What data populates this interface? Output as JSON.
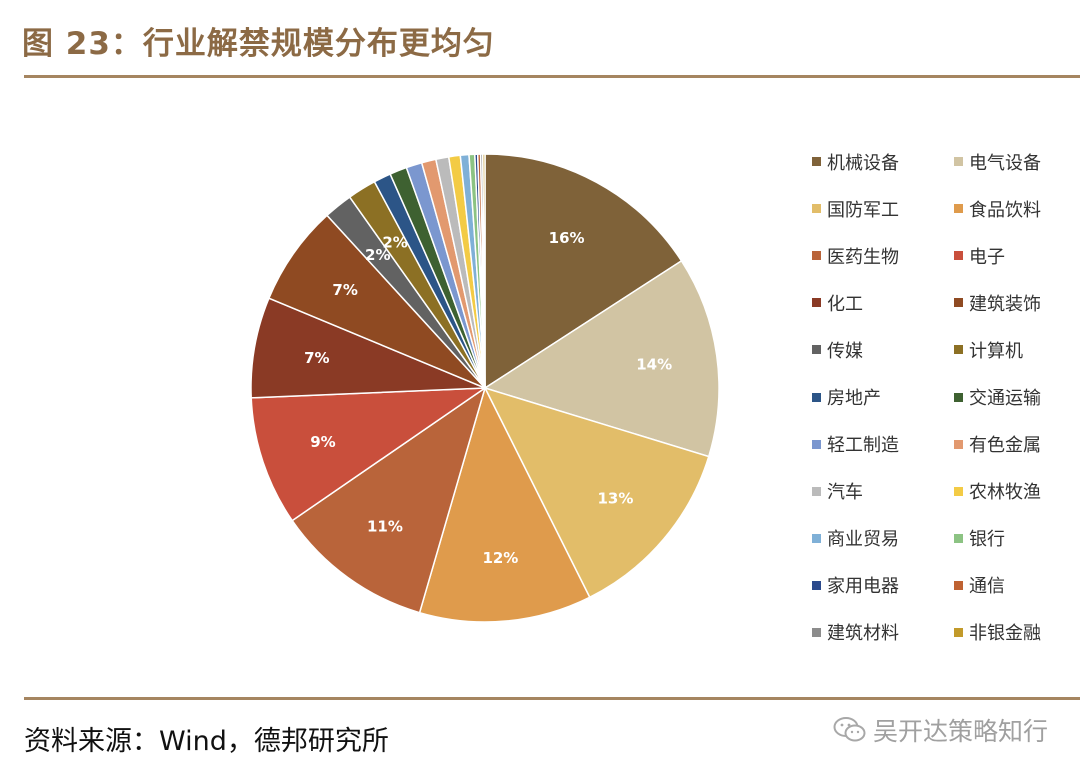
{
  "figure": {
    "title": "图 23：行业解禁规模分布更均匀",
    "source": "资料来源：Wind，德邦研究所",
    "watermark": "吴开达策略知行"
  },
  "chart_data": {
    "type": "pie",
    "start_angle_deg": 0,
    "direction": "clockwise",
    "slices": [
      {
        "name": "机械设备",
        "value": 16,
        "label": "16%",
        "color": "#7f6239"
      },
      {
        "name": "电气设备",
        "value": 14,
        "label": "14%",
        "color": "#d1c4a3"
      },
      {
        "name": "国防军工",
        "value": 13,
        "label": "13%",
        "color": "#e2bd69"
      },
      {
        "name": "食品饮料",
        "value": 12,
        "label": "12%",
        "color": "#df9b4c"
      },
      {
        "name": "医药生物",
        "value": 11,
        "label": "11%",
        "color": "#b9643a"
      },
      {
        "name": "电子",
        "value": 9,
        "label": "9%",
        "color": "#c94f3c"
      },
      {
        "name": "化工",
        "value": 7,
        "label": "7%",
        "color": "#8a3a25"
      },
      {
        "name": "建筑装饰",
        "value": 7,
        "label": "7%",
        "color": "#8f4a22"
      },
      {
        "name": "传媒",
        "value": 2,
        "label": "2%",
        "color": "#626262"
      },
      {
        "name": "计算机",
        "value": 2,
        "label": "2%",
        "color": "#8c7024"
      },
      {
        "name": "房地产",
        "value": 1.2,
        "label": "",
        "color": "#2c5587"
      },
      {
        "name": "交通运输",
        "value": 1.2,
        "label": "",
        "color": "#3e6131"
      },
      {
        "name": "轻工制造",
        "value": 1.1,
        "label": "",
        "color": "#7b97cf"
      },
      {
        "name": "有色金属",
        "value": 1.0,
        "label": "",
        "color": "#e2996f"
      },
      {
        "name": "汽车",
        "value": 0.9,
        "label": "",
        "color": "#bbbbbb"
      },
      {
        "name": "农林牧渔",
        "value": 0.8,
        "label": "",
        "color": "#f3cb45"
      },
      {
        "name": "商业贸易",
        "value": 0.6,
        "label": "",
        "color": "#7fb0d7"
      },
      {
        "name": "银行",
        "value": 0.4,
        "label": "",
        "color": "#8cc383"
      },
      {
        "name": "家用电器",
        "value": 0.2,
        "label": "",
        "color": "#2b4a8c"
      },
      {
        "name": "通信",
        "value": 0.2,
        "label": "",
        "color": "#bf6232"
      },
      {
        "name": "建筑材料",
        "value": 0.15,
        "label": "",
        "color": "#8c8c8c"
      },
      {
        "name": "非银金融",
        "value": 0.15,
        "label": "",
        "color": "#c29a2a"
      }
    ],
    "legend_position": "right"
  }
}
